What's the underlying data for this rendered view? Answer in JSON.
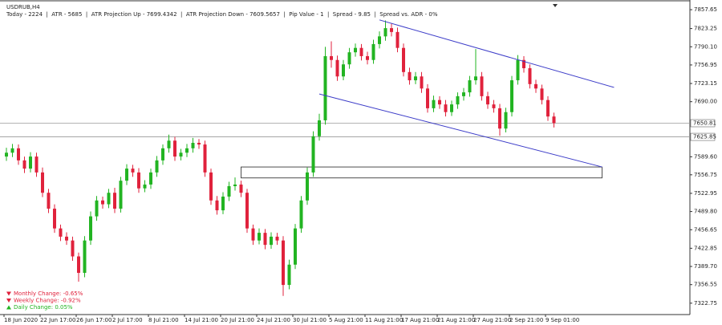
{
  "chart_data": {
    "type": "candlestick",
    "title": "USDRUB,H4",
    "subtitle": "Today - 2224  |  ATR - 5685  |  ATR Projection Up - 7699.4342  |  ATR Projection Down - 7609.5657  |  Pip Value - 1  |  Spread - 9.85  |  Spread vs. ADR - 0%",
    "categories": [
      "18 Jun 2020",
      null,
      null,
      null,
      null,
      null,
      "22 Jun 17:00",
      null,
      null,
      null,
      null,
      null,
      "26 Jun 17:00",
      null,
      null,
      null,
      null,
      null,
      "2 Jul 17:00",
      null,
      null,
      null,
      null,
      null,
      "8 Jul 21:00",
      null,
      null,
      null,
      null,
      null,
      "14 Jul 21:00",
      null,
      null,
      null,
      null,
      null,
      "20 Jul 21:00",
      null,
      null,
      null,
      null,
      null,
      "24 Jul 21:00",
      null,
      null,
      null,
      null,
      null,
      "30 Jul 21:00",
      null,
      null,
      null,
      null,
      null,
      "5 Aug 21:00",
      null,
      null,
      null,
      null,
      null,
      "11 Aug 21:00",
      null,
      null,
      null,
      null,
      null,
      "17 Aug 21:00",
      null,
      null,
      null,
      null,
      null,
      "21 Aug 21:00",
      null,
      null,
      null,
      null,
      null,
      "27 Aug 21:00",
      null,
      null,
      null,
      null,
      null,
      "2 Sep 21:00",
      null,
      null,
      null,
      null,
      null,
      "9 Sep 01:00",
      null
    ],
    "open": [
      7590,
      7597,
      7605,
      7583,
      7568,
      7590,
      7561,
      7524,
      7495,
      7459,
      7444,
      7437,
      7408,
      7378,
      7437,
      7481,
      7510,
      7503,
      7524,
      7495,
      7546,
      7568,
      7561,
      7532,
      7539,
      7561,
      7583,
      7605,
      7619,
      7590,
      7597,
      7605,
      7615,
      7612,
      7561,
      7510,
      7492,
      7517,
      7536,
      7539,
      7524,
      7459,
      7437,
      7451,
      7429,
      7444,
      7437,
      7356,
      7393,
      7459,
      7510,
      7561,
      7627,
      7656,
      7773,
      7766,
      7736,
      7758,
      7780,
      7788,
      7773,
      7766,
      7795,
      7809,
      7824,
      7817,
      7788,
      7744,
      7729,
      7736,
      7714,
      7678,
      7693,
      7685,
      7671,
      7685,
      7700,
      7707,
      7729,
      7736,
      7700,
      7685,
      7678,
      7641,
      7671,
      7729,
      7766,
      7751,
      7722,
      7714,
      7693,
      7663
    ],
    "high": [
      7606,
      7613,
      7612,
      7590,
      7598,
      7597,
      7570,
      7531,
      7503,
      7466,
      7452,
      7444,
      7415,
      7445,
      7490,
      7518,
      7517,
      7531,
      7533,
      7553,
      7576,
      7575,
      7569,
      7547,
      7568,
      7591,
      7612,
      7630,
      7626,
      7604,
      7613,
      7624,
      7622,
      7619,
      7568,
      7518,
      7525,
      7544,
      7552,
      7546,
      7531,
      7466,
      7459,
      7458,
      7452,
      7451,
      7445,
      7402,
      7467,
      7518,
      7570,
      7636,
      7668,
      7790,
      7800,
      7774,
      7766,
      7788,
      7796,
      7795,
      7781,
      7803,
      7818,
      7838,
      7832,
      7825,
      7796,
      7752,
      7744,
      7744,
      7722,
      7701,
      7700,
      7693,
      7692,
      7707,
      7715,
      7737,
      7786,
      7744,
      7708,
      7693,
      7686,
      7679,
      7737,
      7775,
      7773,
      7758,
      7730,
      7721,
      7700,
      7670
    ],
    "low": [
      7582,
      7589,
      7575,
      7560,
      7561,
      7553,
      7516,
      7487,
      7451,
      7436,
      7429,
      7400,
      7362,
      7370,
      7429,
      7473,
      7495,
      7496,
      7487,
      7488,
      7538,
      7553,
      7524,
      7525,
      7531,
      7553,
      7575,
      7597,
      7582,
      7583,
      7589,
      7597,
      7604,
      7553,
      7502,
      7484,
      7485,
      7509,
      7528,
      7516,
      7451,
      7429,
      7430,
      7421,
      7422,
      7429,
      7336,
      7348,
      7385,
      7451,
      7502,
      7553,
      7619,
      7648,
      7752,
      7728,
      7729,
      7750,
      7772,
      7765,
      7758,
      7759,
      7787,
      7801,
      7809,
      7780,
      7736,
      7721,
      7722,
      7706,
      7670,
      7671,
      7677,
      7663,
      7664,
      7677,
      7692,
      7699,
      7721,
      7692,
      7677,
      7670,
      7628,
      7634,
      7663,
      7721,
      7743,
      7714,
      7706,
      7685,
      7655,
      7643
    ],
    "close": [
      7597,
      7605,
      7583,
      7568,
      7590,
      7561,
      7524,
      7495,
      7459,
      7444,
      7437,
      7408,
      7378,
      7437,
      7481,
      7510,
      7503,
      7524,
      7495,
      7546,
      7568,
      7561,
      7532,
      7539,
      7561,
      7583,
      7605,
      7619,
      7590,
      7597,
      7605,
      7615,
      7612,
      7561,
      7510,
      7492,
      7517,
      7536,
      7539,
      7524,
      7459,
      7437,
      7451,
      7429,
      7444,
      7437,
      7356,
      7393,
      7459,
      7510,
      7561,
      7627,
      7656,
      7773,
      7766,
      7736,
      7758,
      7780,
      7788,
      7773,
      7766,
      7795,
      7809,
      7824,
      7817,
      7788,
      7744,
      7729,
      7736,
      7714,
      7678,
      7693,
      7685,
      7671,
      7685,
      7700,
      7707,
      7729,
      7736,
      7700,
      7685,
      7678,
      7641,
      7671,
      7729,
      7766,
      7751,
      7722,
      7714,
      7693,
      7663,
      7651
    ],
    "up_color": "#22b422",
    "down_color": "#e0223c",
    "ylim": [
      7302,
      7868
    ],
    "yticks": [
      7857.65,
      7823.25,
      {
        "value": 7790.1,
        "label": "7790.10"
      },
      7756.95,
      7723.15,
      {
        "value": 7690,
        "label": "7690.00"
      },
      {
        "value": 7589.6,
        "label": "7589.60"
      },
      7556.75,
      7522.95,
      {
        "value": 7489.8,
        "label": "7489.80"
      },
      7456.65,
      7422.85,
      {
        "value": 7389.7,
        "label": "7389.70"
      },
      7356.55,
      7322.75
    ],
    "price_lines": [
      {
        "value": 7650.81
      },
      {
        "value": 7625.85
      }
    ],
    "trendlines": [
      {
        "x": [
          62,
          101
        ],
        "y": [
          7839,
          7716
        ],
        "color": "#3c3cc8"
      },
      {
        "x": [
          52,
          99
        ],
        "y": [
          7704,
          7571
        ],
        "color": "#3c3cc8"
      }
    ],
    "zones": [
      {
        "x": [
          39,
          99
        ],
        "y": [
          7551,
          7571
        ]
      }
    ],
    "stats": [
      {
        "label": "Monthly Change: -0.65%",
        "direction": "down"
      },
      {
        "label": "Weekly Change: -0.92%",
        "direction": "down"
      },
      {
        "label": "Daily Change: 0.05%",
        "direction": "up"
      }
    ]
  }
}
